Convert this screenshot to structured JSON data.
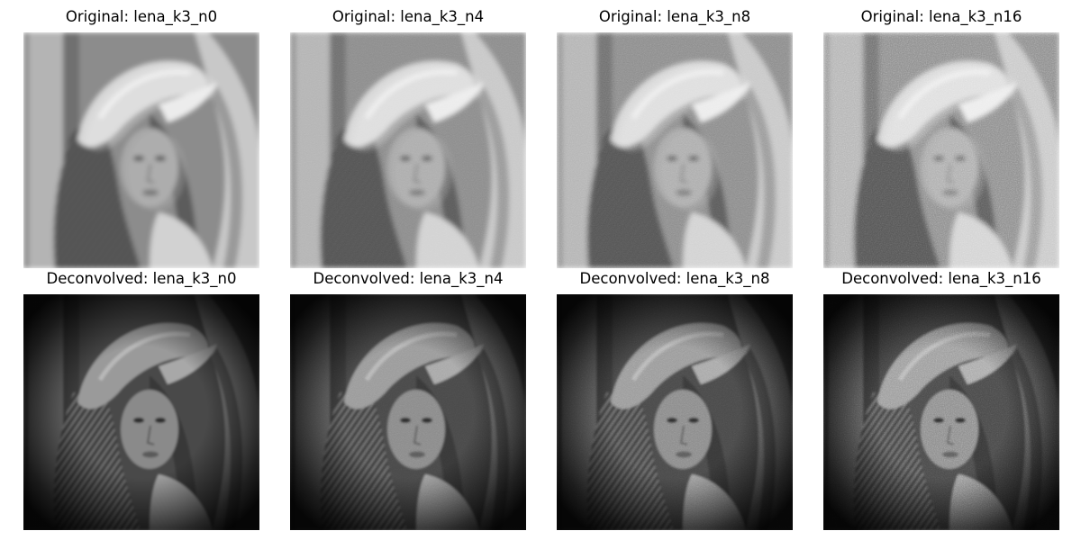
{
  "figure": {
    "rows": [
      {
        "kind": "original",
        "panels": [
          {
            "title": "Original: lena_k3_n0",
            "noise": 0
          },
          {
            "title": "Original: lena_k3_n4",
            "noise": 4
          },
          {
            "title": "Original: lena_k3_n8",
            "noise": 8
          },
          {
            "title": "Original: lena_k3_n16",
            "noise": 16
          }
        ]
      },
      {
        "kind": "deconvolved",
        "panels": [
          {
            "title": "Deconvolved: lena_k3_n0",
            "noise": 0
          },
          {
            "title": "Deconvolved: lena_k3_n4",
            "noise": 4
          },
          {
            "title": "Deconvolved: lena_k3_n8",
            "noise": 8
          },
          {
            "title": "Deconvolved: lena_k3_n16",
            "noise": 16
          }
        ]
      }
    ]
  }
}
